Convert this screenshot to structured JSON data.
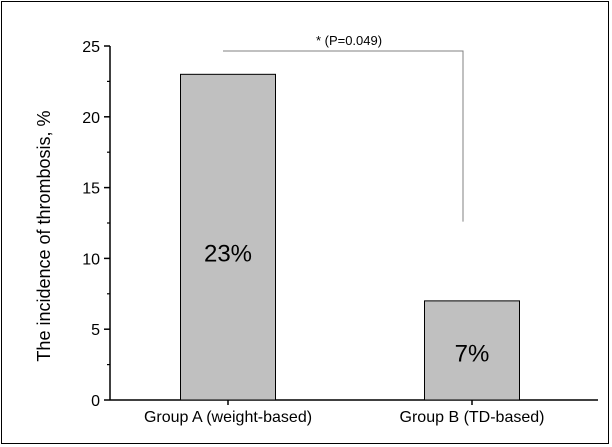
{
  "chart_data": {
    "type": "bar",
    "categories": [
      "Group A (weight-based)",
      "Group B (TD-based)"
    ],
    "values": [
      23,
      7
    ],
    "data_labels": [
      "23%",
      "7%"
    ],
    "title": "",
    "xlabel": "",
    "ylabel": "The incidence of thrombosis, %",
    "ylim": [
      0,
      25
    ],
    "yticks": [
      0,
      5,
      10,
      15,
      20,
      25
    ],
    "grid": false,
    "legend": "none",
    "annotation": "* (P=0.049)",
    "colors": {
      "bar_fill": "#c0c0c0",
      "bar_stroke": "#000000",
      "axis": "#000000",
      "bracket": "#808080"
    }
  }
}
